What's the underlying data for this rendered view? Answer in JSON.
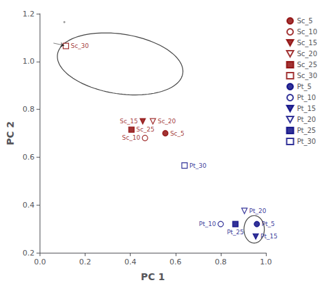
{
  "chart_data": {
    "type": "scatter",
    "xlabel": "PC 1",
    "ylabel": "PC 2",
    "xlim": [
      0.0,
      1.0
    ],
    "ylim": [
      0.2,
      1.2
    ],
    "xticks": [
      {
        "value": 0.0,
        "label": "0.0"
      },
      0.2,
      0.4,
      0.6,
      0.8,
      {
        "value": 1.0,
        "label": "1.0"
      }
    ],
    "yticks": [
      0.2,
      0.4,
      0.6,
      0.8,
      {
        "value": 1.0,
        "label": "1.0"
      },
      1.2
    ],
    "grid": false,
    "legend": "upper right",
    "series": [
      {
        "name": "Sc_5",
        "color": "#8B0000",
        "marker": "circle",
        "x": [
          0.555
        ],
        "values": [
          0.7
        ]
      },
      {
        "name": "Sc_10",
        "color": "#8B0000",
        "marker": "circle_open",
        "x": [
          0.465
        ],
        "values": [
          0.68
        ]
      },
      {
        "name": "Sc_15",
        "color": "#8B0000",
        "marker": "triangle_down",
        "x": [
          0.455
        ],
        "values": [
          0.75
        ]
      },
      {
        "name": "Sc_20",
        "color": "#8B0000",
        "marker": "triangle_down_open",
        "x": [
          0.5
        ],
        "values": [
          0.75
        ]
      },
      {
        "name": "Sc_25",
        "color": "#8B0000",
        "marker": "square",
        "x": [
          0.405
        ],
        "values": [
          0.715
        ]
      },
      {
        "name": "Sc_30",
        "color": "#8B0000",
        "marker": "square_open",
        "x": [
          0.115
        ],
        "values": [
          1.065
        ]
      },
      {
        "name": "Pt_5",
        "color": "#000080",
        "marker": "circle",
        "x": [
          0.96
        ],
        "values": [
          0.32
        ]
      },
      {
        "name": "Pt_10",
        "color": "#000080",
        "marker": "circle_open",
        "x": [
          0.8
        ],
        "values": [
          0.32
        ]
      },
      {
        "name": "Pt_15",
        "color": "#000080",
        "marker": "triangle_down",
        "x": [
          0.955
        ],
        "values": [
          0.268
        ]
      },
      {
        "name": "Pt_20",
        "color": "#000080",
        "marker": "triangle_down_open",
        "x": [
          0.905
        ],
        "values": [
          0.375
        ]
      },
      {
        "name": "Pt_25",
        "color": "#000080",
        "marker": "square",
        "x": [
          0.865
        ],
        "values": [
          0.32
        ]
      },
      {
        "name": "Pt_30",
        "color": "#000080",
        "marker": "square_open",
        "x": [
          0.64
        ],
        "values": [
          0.565
        ]
      }
    ],
    "annotations": [
      {
        "text": "Sc_5",
        "x": 0.555,
        "y": 0.7,
        "color": "#8B0000"
      },
      {
        "text": "Sc_10",
        "x": 0.465,
        "y": 0.68,
        "color": "#8B0000"
      },
      {
        "text": "Sc_15",
        "x": 0.455,
        "y": 0.75,
        "color": "#8B0000"
      },
      {
        "text": "Sc_20",
        "x": 0.5,
        "y": 0.75,
        "color": "#8B0000"
      },
      {
        "text": "Sc_25",
        "x": 0.405,
        "y": 0.715,
        "color": "#8B0000"
      },
      {
        "text": "Sc_30",
        "x": 0.115,
        "y": 1.065,
        "color": "#8B0000"
      },
      {
        "text": "Pt_5",
        "x": 0.96,
        "y": 0.32,
        "color": "#000080"
      },
      {
        "text": "Pt_10",
        "x": 0.8,
        "y": 0.32,
        "color": "#000080"
      },
      {
        "text": "Pt_15",
        "x": 0.955,
        "y": 0.268,
        "color": "#000080"
      },
      {
        "text": "Pt_20",
        "x": 0.905,
        "y": 0.375,
        "color": "#000080"
      },
      {
        "text": "Pt_25",
        "x": 0.865,
        "y": 0.32,
        "color": "#000080"
      },
      {
        "text": "Pt_30",
        "x": 0.64,
        "y": 0.565,
        "color": "#000080"
      }
    ],
    "ellipses": [
      {
        "cx": 0.355,
        "cy": 0.99,
        "width": 0.56,
        "height": 0.25,
        "angle": -8,
        "color": "#444444"
      },
      {
        "cx": 0.948,
        "cy": 0.298,
        "width": 0.09,
        "height": 0.115,
        "angle": 0,
        "color": "#444444"
      }
    ],
    "arrows": [
      {
        "start": [
          0.06,
          1.077
        ],
        "end": [
          0.108,
          1.067
        ],
        "color": "black"
      }
    ],
    "small_dots": [
      {
        "x": 0.108,
        "y": 1.165,
        "color": "gray"
      }
    ]
  }
}
